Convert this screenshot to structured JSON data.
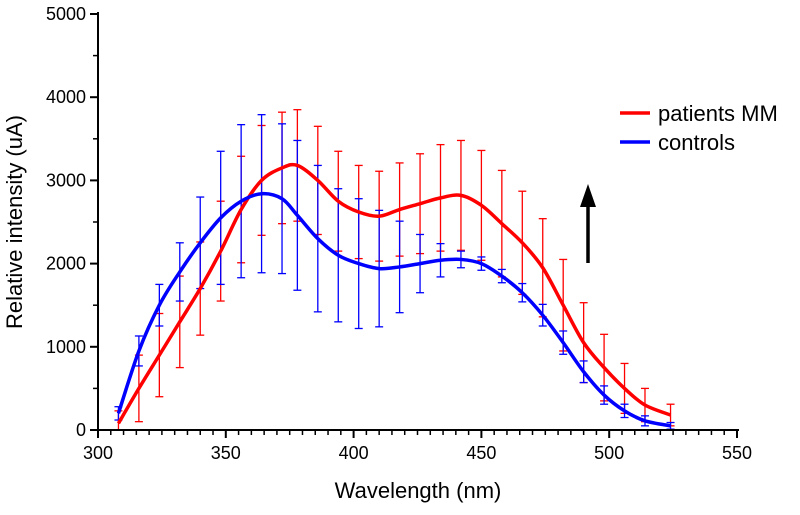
{
  "chart_data": {
    "type": "line",
    "title": "",
    "xlabel": "Wavelength (nm)",
    "ylabel": "Relative intensity (uA)",
    "xlim": [
      300,
      550
    ],
    "ylim": [
      0,
      5000
    ],
    "xticks": [
      "300",
      "350",
      "400",
      "450",
      "500",
      "550"
    ],
    "yticks": [
      "0",
      "1000",
      "2000",
      "3000",
      "4000",
      "5000"
    ],
    "grid": false,
    "legend_placement": "top-right",
    "error_bars": true,
    "x": [
      308,
      316,
      324,
      332,
      340,
      348,
      356,
      364,
      372,
      378,
      386,
      394,
      402,
      410,
      418,
      426,
      434,
      442,
      450,
      458,
      466,
      474,
      482,
      490,
      498,
      506,
      514,
      524
    ],
    "series": [
      {
        "name": "patients MM",
        "color": "#ff0000",
        "values": [
          80,
          500,
          900,
          1300,
          1700,
          2150,
          2650,
          3000,
          3150,
          3180,
          3000,
          2750,
          2620,
          2570,
          2650,
          2720,
          2790,
          2820,
          2700,
          2480,
          2250,
          1950,
          1500,
          1050,
          750,
          500,
          300,
          180
        ],
        "error": [
          150,
          400,
          500,
          550,
          560,
          600,
          640,
          660,
          670,
          670,
          650,
          600,
          560,
          540,
          560,
          600,
          640,
          660,
          660,
          640,
          620,
          590,
          550,
          480,
          400,
          300,
          200,
          130
        ]
      },
      {
        "name": "controls",
        "color": "#0000ff",
        "values": [
          200,
          950,
          1500,
          1900,
          2250,
          2550,
          2750,
          2840,
          2780,
          2580,
          2300,
          2100,
          2000,
          1940,
          1960,
          2000,
          2040,
          2050,
          2000,
          1850,
          1650,
          1380,
          1050,
          700,
          420,
          230,
          110,
          50
        ],
        "error": [
          80,
          180,
          250,
          350,
          550,
          800,
          920,
          950,
          900,
          900,
          880,
          800,
          780,
          700,
          550,
          350,
          200,
          100,
          80,
          80,
          110,
          130,
          140,
          130,
          110,
          80,
          60,
          40
        ]
      }
    ],
    "annotations": [
      {
        "type": "arrow",
        "direction": "up"
      }
    ]
  }
}
